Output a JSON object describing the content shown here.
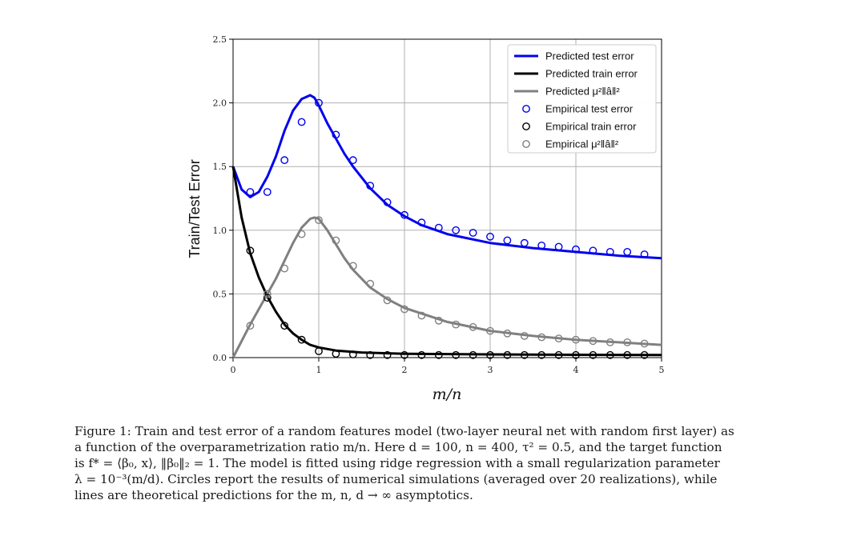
{
  "chart_data": {
    "type": "line",
    "title": "",
    "xlabel": "m/n",
    "ylabel": "Train/Test Error",
    "xlim": [
      0,
      5
    ],
    "ylim": [
      0,
      2.5
    ],
    "x_ticks": [
      "0",
      "1",
      "2",
      "3",
      "4",
      "5"
    ],
    "y_ticks": [
      "0.0",
      "0.5",
      "1.0",
      "1.5",
      "2.0",
      "2.5"
    ],
    "grid": true,
    "legend_position": "top-right",
    "colors": {
      "test": "#0000ee",
      "train": "#000000",
      "mu": "#808080"
    },
    "series": [
      {
        "name": "Predicted test error",
        "kind": "line",
        "color": "#0000ee",
        "x": [
          0,
          0.1,
          0.2,
          0.3,
          0.4,
          0.5,
          0.6,
          0.7,
          0.8,
          0.9,
          0.95,
          1.0,
          1.1,
          1.2,
          1.3,
          1.4,
          1.6,
          1.8,
          2.0,
          2.2,
          2.5,
          3.0,
          3.5,
          4.0,
          4.5,
          5.0
        ],
        "y": [
          1.5,
          1.32,
          1.26,
          1.3,
          1.42,
          1.58,
          1.78,
          1.94,
          2.03,
          2.06,
          2.04,
          1.98,
          1.84,
          1.72,
          1.6,
          1.5,
          1.33,
          1.2,
          1.11,
          1.04,
          0.97,
          0.9,
          0.86,
          0.83,
          0.8,
          0.78
        ]
      },
      {
        "name": "Predicted train error",
        "kind": "line",
        "color": "#000000",
        "x": [
          0,
          0.1,
          0.2,
          0.3,
          0.4,
          0.5,
          0.6,
          0.7,
          0.8,
          0.9,
          1.0,
          1.2,
          1.5,
          2.0,
          3.0,
          4.0,
          5.0
        ],
        "y": [
          1.5,
          1.1,
          0.82,
          0.63,
          0.48,
          0.36,
          0.26,
          0.19,
          0.14,
          0.1,
          0.08,
          0.055,
          0.04,
          0.03,
          0.025,
          0.022,
          0.02
        ]
      },
      {
        "name": "Predicted μ²‖â‖²",
        "kind": "line",
        "color": "#808080",
        "x": [
          0,
          0.1,
          0.2,
          0.3,
          0.4,
          0.5,
          0.6,
          0.7,
          0.8,
          0.9,
          0.95,
          1.0,
          1.1,
          1.2,
          1.3,
          1.4,
          1.6,
          1.8,
          2.0,
          2.5,
          3.0,
          3.5,
          4.0,
          4.5,
          5.0
        ],
        "y": [
          0,
          0.13,
          0.26,
          0.38,
          0.5,
          0.62,
          0.76,
          0.9,
          1.02,
          1.09,
          1.1,
          1.09,
          1.0,
          0.89,
          0.78,
          0.69,
          0.55,
          0.46,
          0.39,
          0.28,
          0.21,
          0.17,
          0.14,
          0.12,
          0.1
        ]
      },
      {
        "name": "Empirical test error",
        "kind": "scatter",
        "color": "#0000ee",
        "x": [
          0.2,
          0.4,
          0.6,
          0.8,
          1.0,
          1.2,
          1.4,
          1.6,
          1.8,
          2.0,
          2.2,
          2.4,
          2.6,
          2.8,
          3.0,
          3.2,
          3.4,
          3.6,
          3.8,
          4.0,
          4.2,
          4.4,
          4.6,
          4.8
        ],
        "y": [
          1.3,
          1.3,
          1.55,
          1.85,
          2.0,
          1.75,
          1.55,
          1.35,
          1.22,
          1.12,
          1.06,
          1.02,
          1.0,
          0.98,
          0.95,
          0.92,
          0.9,
          0.88,
          0.87,
          0.85,
          0.84,
          0.83,
          0.83,
          0.81
        ]
      },
      {
        "name": "Empirical train error",
        "kind": "scatter",
        "color": "#000000",
        "x": [
          0.2,
          0.4,
          0.6,
          0.8,
          1.0,
          1.2,
          1.4,
          1.6,
          1.8,
          2.0,
          2.2,
          2.4,
          2.6,
          2.8,
          3.0,
          3.2,
          3.4,
          3.6,
          3.8,
          4.0,
          4.2,
          4.4,
          4.6,
          4.8
        ],
        "y": [
          0.84,
          0.47,
          0.25,
          0.14,
          0.05,
          0.03,
          0.025,
          0.02,
          0.02,
          0.02,
          0.02,
          0.02,
          0.02,
          0.02,
          0.02,
          0.02,
          0.02,
          0.02,
          0.02,
          0.02,
          0.02,
          0.02,
          0.02,
          0.02
        ]
      },
      {
        "name": "Empirical μ²‖â‖²",
        "kind": "scatter",
        "color": "#808080",
        "x": [
          0.2,
          0.4,
          0.6,
          0.8,
          1.0,
          1.2,
          1.4,
          1.6,
          1.8,
          2.0,
          2.2,
          2.4,
          2.6,
          2.8,
          3.0,
          3.2,
          3.4,
          3.6,
          3.8,
          4.0,
          4.2,
          4.4,
          4.6,
          4.8
        ],
        "y": [
          0.25,
          0.5,
          0.7,
          0.97,
          1.08,
          0.92,
          0.72,
          0.58,
          0.45,
          0.38,
          0.33,
          0.29,
          0.26,
          0.24,
          0.21,
          0.19,
          0.17,
          0.16,
          0.15,
          0.14,
          0.13,
          0.12,
          0.12,
          0.11
        ]
      }
    ]
  },
  "caption": {
    "lines": [
      "Figure 1: Train and test error of a random features model (two-layer neural net with random first layer) as",
      "a function of the overparametrization ratio m/n. Here d = 100, n = 400, τ² = 0.5, and the target function",
      "is f* = ⟨β₀, x⟩, ‖β₀‖₂ = 1. The model is fitted using ridge regression with a small regularization parameter",
      "λ = 10⁻³(m/d). Circles report the results of numerical simulations (averaged over 20 realizations), while",
      "lines are theoretical predictions for the m, n, d → ∞ asymptotics."
    ]
  }
}
